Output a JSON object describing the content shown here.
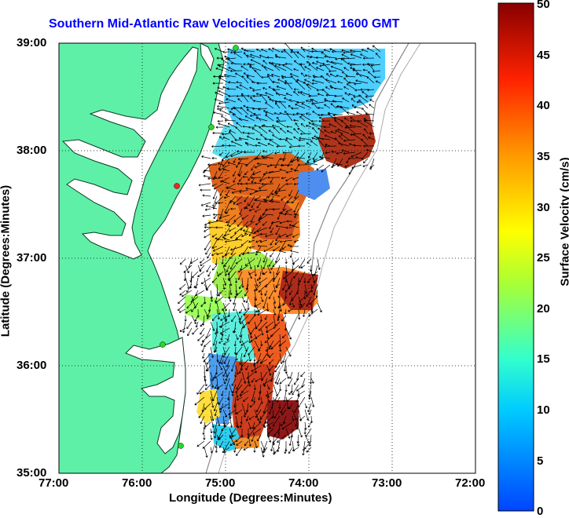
{
  "title": "Southern Mid-Atlantic Raw Velocities 2008/09/21 1600 GMT",
  "xlabel": "Longitude (Degrees:Minutes)",
  "ylabel": "Latitude (Degrees:Minutes)",
  "x_ticks": [
    "77:00",
    "76:00",
    "75:00",
    "74:00",
    "73:00",
    "72:00"
  ],
  "y_ticks": [
    "39:00",
    "38:00",
    "37:00",
    "36:00",
    "35:00"
  ],
  "colorbar": {
    "label": "Surface Velocity (cm/s)",
    "ticks": [
      "50",
      "45",
      "40",
      "35",
      "30",
      "25",
      "20",
      "15",
      "10",
      "5",
      "0"
    ]
  },
  "colors": {
    "land": "#5ff0a8",
    "title": "#0000ff",
    "station": "#22dd22",
    "station_alt": "#ff2222"
  }
}
